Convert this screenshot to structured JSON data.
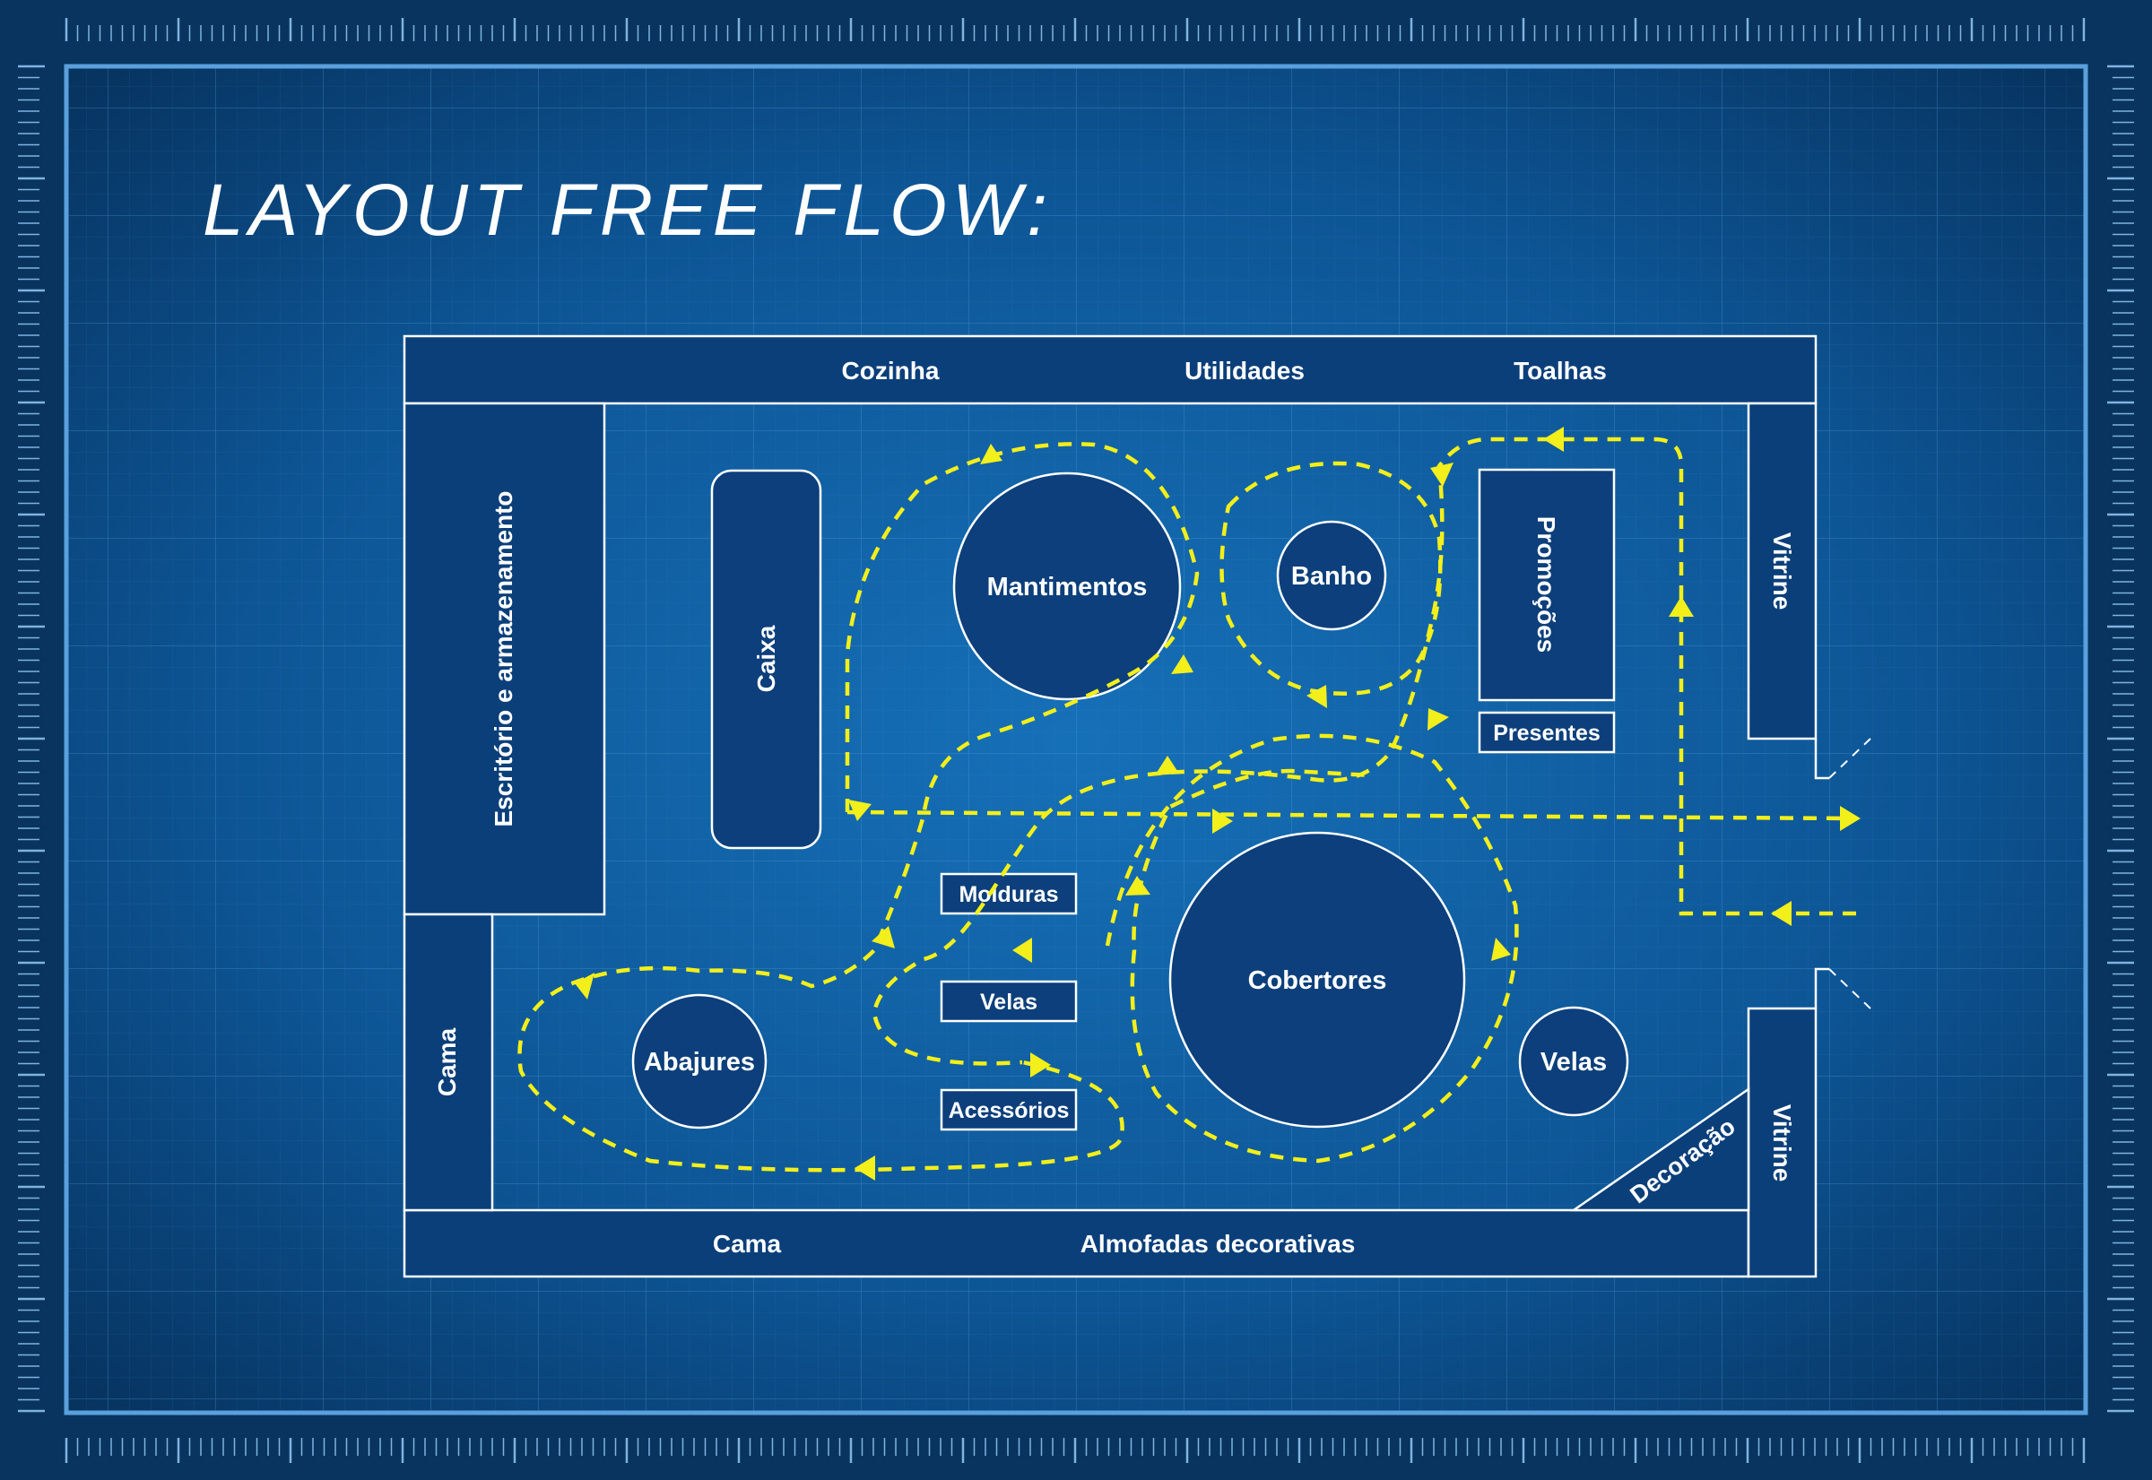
{
  "title": "LAYOUT FREE FLOW:",
  "zones": {
    "top": [
      "Cozinha",
      "Utilidades",
      "Toalhas"
    ],
    "bottom": [
      "Cama",
      "Almofadas decorativas"
    ],
    "left_office": "Escritório e armazenamento",
    "left_bed": "Cama",
    "vitrine_top": "Vitrine",
    "vitrine_bottom": "Vitrine",
    "decoracao": "Decoração"
  },
  "fixtures": {
    "caixa": "Caixa",
    "promocoes": "Promoções",
    "presentes": "Presentes",
    "molduras": "Molduras",
    "velas_box": "Velas",
    "acessorios": "Acessórios"
  },
  "islands": {
    "mantimentos": "Mantimentos",
    "banho": "Banho",
    "cobertores": "Cobertores",
    "abajures": "Abajures",
    "velas": "Velas"
  },
  "colors": {
    "background": "#0b4a86",
    "path": "#f3ef1a",
    "lines": "#ffffff",
    "frame": "#5aa0dd"
  }
}
